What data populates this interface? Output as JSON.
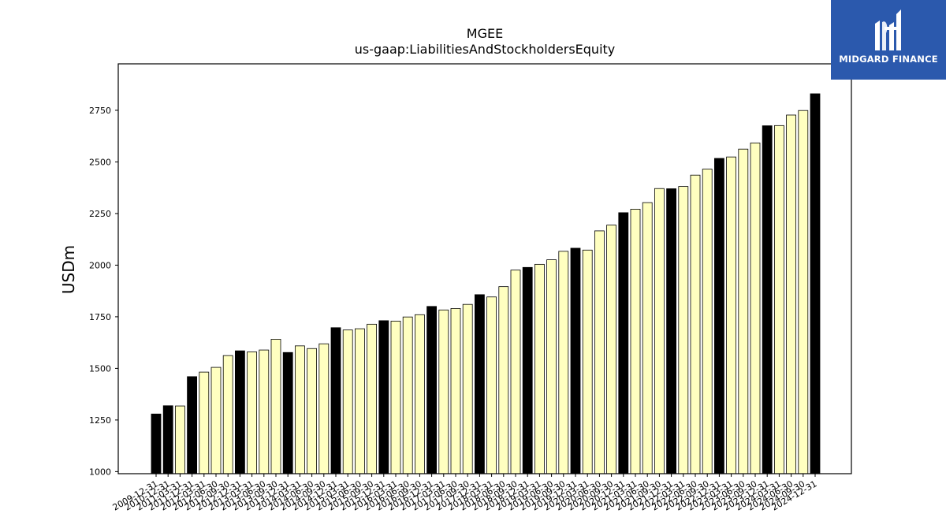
{
  "chart_data": {
    "type": "bar",
    "title": "MGEE",
    "subtitle": "us-gaap:LiabilitiesAndStockholdersEquity",
    "ylabel": "USDm",
    "xlabel": "",
    "ylim": [
      990,
      2975
    ],
    "yticks": [
      1000,
      1250,
      1500,
      1750,
      2000,
      2250,
      2500,
      2750
    ],
    "grid": false,
    "colors": {
      "annual": "#000000",
      "quarterly": "#ffffc0",
      "edge": "#000000"
    },
    "categories": [
      "2009-12-31",
      "2010-12-31",
      "2011-03-31",
      "2011-12-31",
      "2012-03-31",
      "2012-06-30",
      "2012-09-30",
      "2012-12-31",
      "2013-03-31",
      "2013-06-30",
      "2013-09-30",
      "2013-12-31",
      "2014-03-31",
      "2014-06-30",
      "2014-09-30",
      "2014-12-31",
      "2015-03-31",
      "2015-06-30",
      "2015-09-30",
      "2015-12-31",
      "2016-03-31",
      "2016-06-30",
      "2016-09-30",
      "2016-12-31",
      "2017-03-31",
      "2017-06-30",
      "2017-09-30",
      "2017-12-31",
      "2018-03-31",
      "2018-06-30",
      "2018-09-30",
      "2018-12-31",
      "2019-03-31",
      "2019-06-30",
      "2019-09-30",
      "2019-12-31",
      "2020-03-31",
      "2020-06-30",
      "2020-09-30",
      "2020-12-31",
      "2021-03-31",
      "2021-06-30",
      "2021-09-30",
      "2021-12-31",
      "2022-03-31",
      "2022-06-30",
      "2022-09-30",
      "2022-12-31",
      "2023-03-31",
      "2023-06-30",
      "2023-09-30",
      "2023-12-31",
      "2024-03-31",
      "2024-06-30",
      "2024-09-30",
      "2024-12-31"
    ],
    "values": [
      1279,
      1319,
      1318,
      1460,
      1482,
      1505,
      1562,
      1585,
      1580,
      1589,
      1641,
      1577,
      1609,
      1596,
      1619,
      1697,
      1686,
      1692,
      1714,
      1731,
      1729,
      1749,
      1760,
      1800,
      1783,
      1790,
      1810,
      1857,
      1846,
      1896,
      1976,
      1989,
      2004,
      2026,
      2067,
      2082,
      2073,
      2166,
      2194,
      2254,
      2271,
      2303,
      2371,
      2370,
      2381,
      2436,
      2465,
      2517,
      2524,
      2562,
      2592,
      2675,
      2676,
      2727,
      2749,
      2830
    ],
    "annual": [
      true,
      true,
      false,
      true,
      false,
      false,
      false,
      true,
      false,
      false,
      false,
      true,
      false,
      false,
      false,
      true,
      false,
      false,
      false,
      true,
      false,
      false,
      false,
      true,
      false,
      false,
      false,
      true,
      false,
      false,
      false,
      true,
      false,
      false,
      false,
      true,
      false,
      false,
      false,
      true,
      false,
      false,
      false,
      true,
      false,
      false,
      false,
      true,
      false,
      false,
      false,
      true,
      false,
      false,
      false,
      true
    ]
  },
  "logo": {
    "text": "MIDGARD FINANCE",
    "bg": "#2b59ad"
  }
}
